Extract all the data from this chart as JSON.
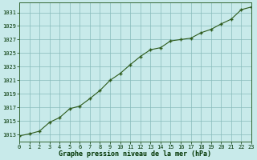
{
  "x": [
    0,
    1,
    2,
    3,
    4,
    5,
    6,
    7,
    8,
    9,
    10,
    11,
    12,
    13,
    14,
    15,
    16,
    17,
    18,
    19,
    20,
    21,
    22,
    23
  ],
  "y": [
    1012.8,
    1013.1,
    1013.5,
    1014.8,
    1015.5,
    1016.8,
    1017.2,
    1018.3,
    1019.5,
    1021.0,
    1022.0,
    1023.3,
    1024.5,
    1025.5,
    1025.8,
    1026.8,
    1027.0,
    1027.2,
    1028.0,
    1028.5,
    1029.3,
    1030.0,
    1031.4,
    1031.8
  ],
  "line_color": "#2d5a1b",
  "marker": "+",
  "marker_color": "#2d5a1b",
  "bg_color": "#c8eaea",
  "grid_color": "#88bbbb",
  "xlabel": "Graphe pression niveau de la mer (hPa)",
  "xlabel_color": "#003300",
  "ylabel_ticks": [
    1013,
    1015,
    1017,
    1019,
    1021,
    1023,
    1025,
    1027,
    1029,
    1031
  ],
  "xlim": [
    0,
    23
  ],
  "ylim": [
    1012.0,
    1032.5
  ],
  "tick_color": "#003300",
  "spine_color": "#336633",
  "tick_label_fontsize": 5.0,
  "xlabel_fontsize": 6.0
}
